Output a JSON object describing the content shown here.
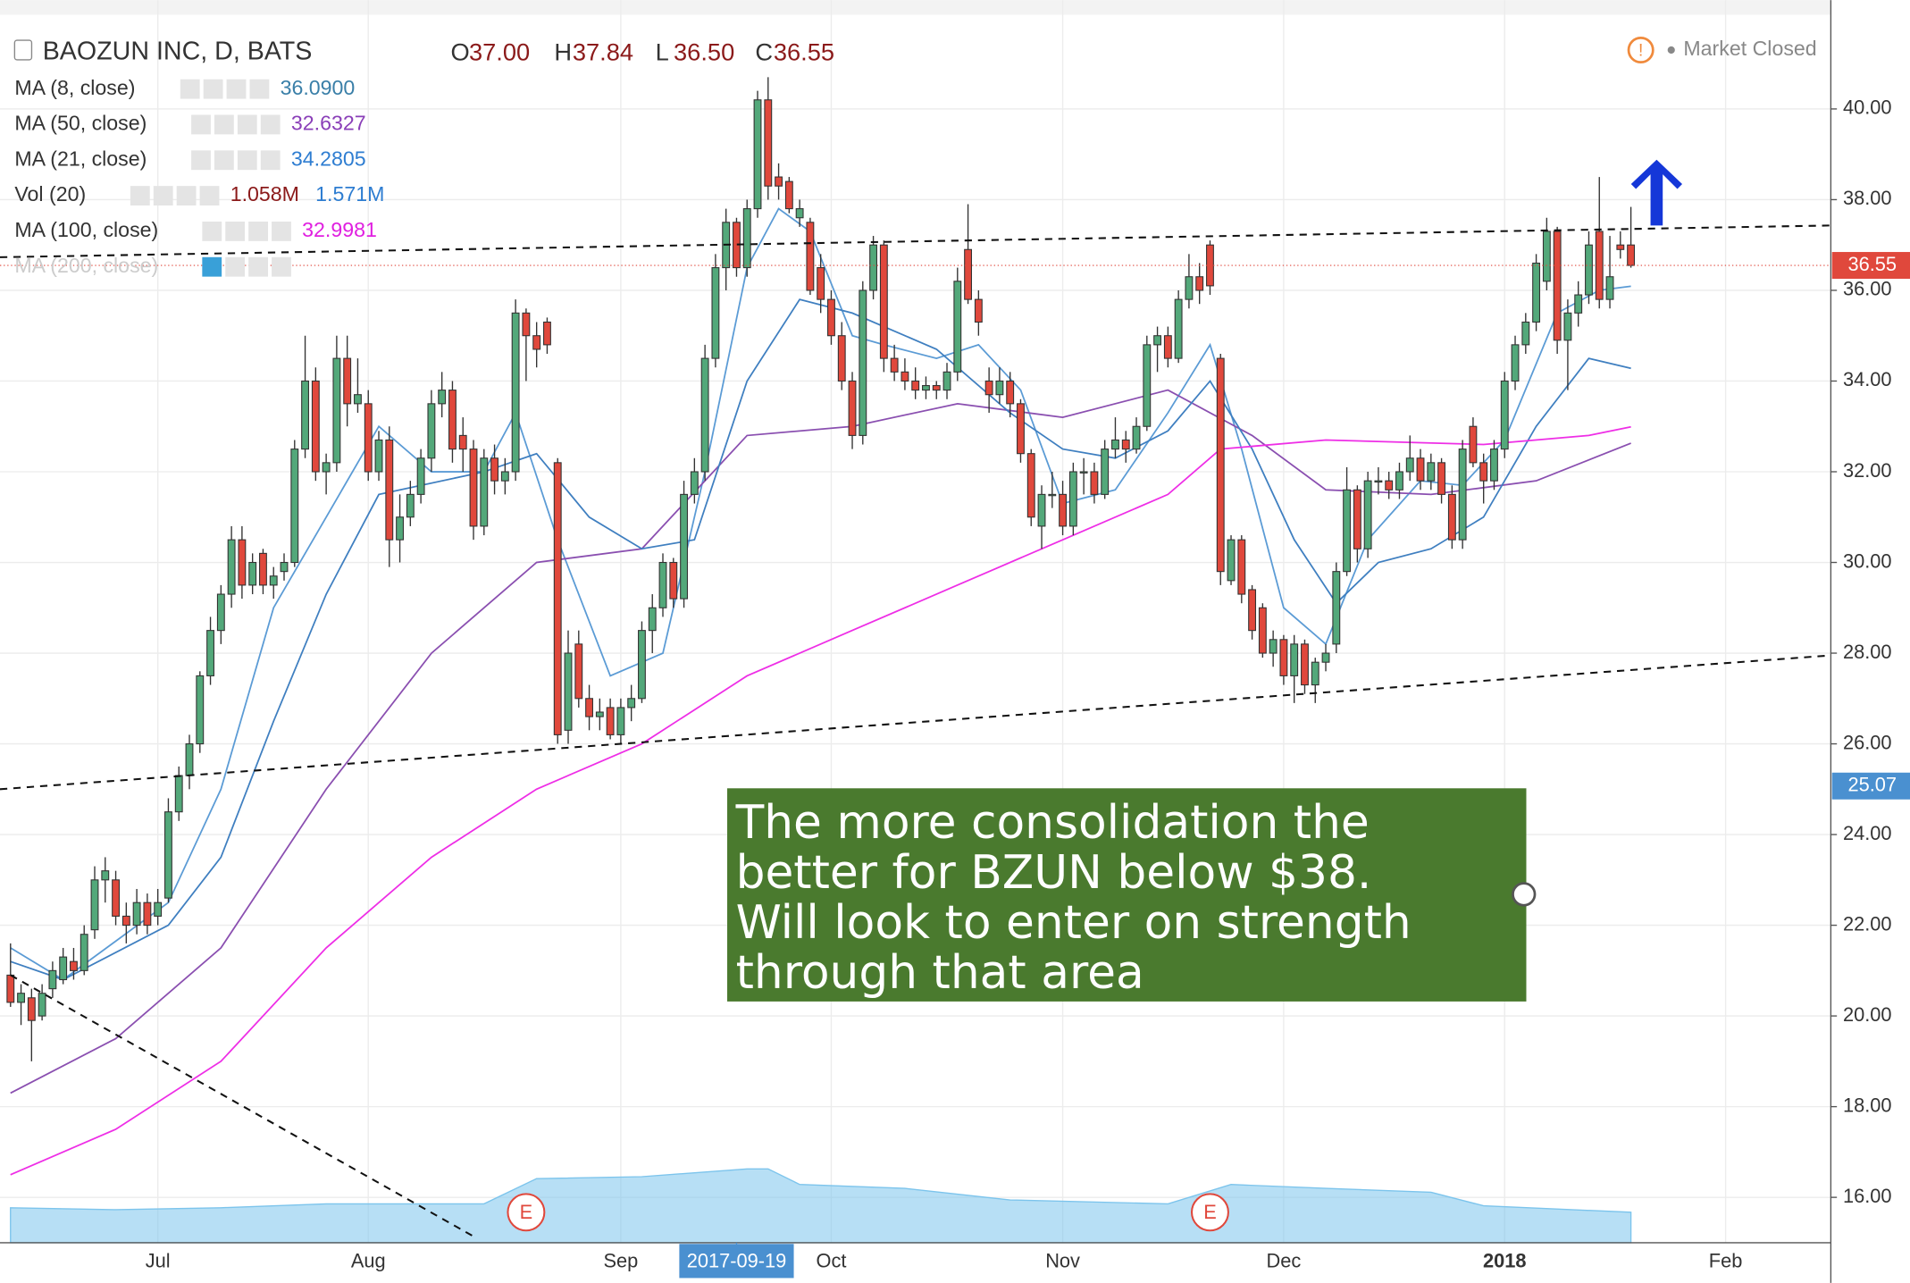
{
  "chart_data": {
    "type": "candlestick",
    "title": "BAOZUN INC, D, BATS",
    "ohlc_legend": [
      {
        "key": "O",
        "text": "37.00"
      },
      {
        "key": "H",
        "text": "37.84"
      },
      {
        "key": "L",
        "text": "36.50"
      },
      {
        "key": "C",
        "text": "36.55"
      }
    ],
    "status": "Market Closed",
    "up_color": "#53a87a",
    "down_color": "#e0483c",
    "xlim": [
      -1,
      173
    ],
    "ylim": [
      15,
      42.4
    ],
    "yticks": [
      {
        "value": 16,
        "label": "16.00"
      },
      {
        "value": 18,
        "label": "18.00"
      },
      {
        "value": 20,
        "label": "20.00"
      },
      {
        "value": 22,
        "label": "22.00"
      },
      {
        "value": 24,
        "label": "24.00"
      },
      {
        "value": 26,
        "label": "26.00"
      },
      {
        "value": 28,
        "label": "28.00"
      },
      {
        "value": 30,
        "label": "30.00"
      },
      {
        "value": 32,
        "label": "32.00"
      },
      {
        "value": 34,
        "label": "34.00"
      },
      {
        "value": 36,
        "label": "36.00"
      },
      {
        "value": 38,
        "label": "38.00"
      },
      {
        "value": 40,
        "label": "40.00"
      }
    ],
    "xticks": [
      {
        "value": 14,
        "label": "Jul"
      },
      {
        "value": 34,
        "label": "Aug"
      },
      {
        "value": 58,
        "label": "Sep"
      },
      {
        "value": 78,
        "label": "Oct"
      },
      {
        "value": 100,
        "label": "Nov"
      },
      {
        "value": 121,
        "label": "Dec"
      },
      {
        "value": 142,
        "label": "2018"
      },
      {
        "value": 163,
        "label": "Feb"
      }
    ],
    "crosshair_label": {
      "value": 69,
      "label": "2017-09-19"
    },
    "grid": true,
    "ohlc": [
      [
        20.9,
        21.6,
        20.2,
        20.3
      ],
      [
        20.3,
        20.7,
        19.8,
        20.5
      ],
      [
        20.4,
        20.6,
        19.0,
        19.9
      ],
      [
        20.0,
        20.7,
        19.9,
        20.5
      ],
      [
        20.6,
        21.2,
        20.4,
        21.0
      ],
      [
        20.8,
        21.5,
        20.7,
        21.3
      ],
      [
        21.2,
        21.5,
        20.8,
        21.0
      ],
      [
        21.0,
        22.0,
        20.9,
        21.8
      ],
      [
        21.9,
        23.3,
        21.7,
        23.0
      ],
      [
        23.0,
        23.5,
        22.5,
        23.2
      ],
      [
        23.0,
        23.2,
        22.0,
        22.2
      ],
      [
        22.2,
        22.5,
        21.6,
        22.0
      ],
      [
        22.0,
        22.8,
        21.8,
        22.5
      ],
      [
        22.5,
        22.7,
        21.8,
        22.0
      ],
      [
        22.2,
        22.8,
        22.0,
        22.5
      ],
      [
        22.6,
        24.8,
        22.5,
        24.5
      ],
      [
        24.5,
        25.5,
        24.3,
        25.3
      ],
      [
        25.3,
        26.2,
        25.0,
        26.0
      ],
      [
        26.0,
        27.6,
        25.8,
        27.5
      ],
      [
        27.5,
        28.8,
        27.3,
        28.5
      ],
      [
        28.5,
        29.5,
        28.2,
        29.3
      ],
      [
        29.3,
        30.8,
        29.0,
        30.5
      ],
      [
        30.5,
        30.8,
        29.2,
        29.5
      ],
      [
        29.5,
        30.2,
        29.3,
        30.0
      ],
      [
        30.2,
        30.3,
        29.3,
        29.5
      ],
      [
        29.5,
        29.9,
        29.2,
        29.7
      ],
      [
        29.8,
        30.2,
        29.6,
        30.0
      ],
      [
        30.0,
        32.7,
        29.9,
        32.5
      ],
      [
        32.5,
        35.0,
        32.3,
        34.0
      ],
      [
        34.0,
        34.3,
        31.8,
        32.0
      ],
      [
        32.0,
        32.4,
        31.5,
        32.2
      ],
      [
        32.2,
        35.0,
        32.0,
        34.5
      ],
      [
        34.5,
        35.0,
        33.0,
        33.5
      ],
      [
        33.5,
        34.5,
        33.3,
        33.7
      ],
      [
        33.5,
        33.8,
        31.8,
        32.0
      ],
      [
        32.0,
        32.9,
        31.8,
        32.7
      ],
      [
        32.7,
        33.0,
        29.9,
        30.5
      ],
      [
        30.5,
        31.5,
        30.0,
        31.0
      ],
      [
        31.0,
        31.8,
        30.8,
        31.5
      ],
      [
        31.5,
        32.5,
        31.3,
        32.3
      ],
      [
        32.3,
        33.8,
        32.0,
        33.5
      ],
      [
        33.5,
        34.2,
        33.2,
        33.8
      ],
      [
        33.8,
        34.0,
        32.2,
        32.5
      ],
      [
        32.8,
        33.2,
        32.0,
        32.5
      ],
      [
        32.5,
        32.7,
        30.5,
        30.8
      ],
      [
        30.8,
        32.5,
        30.6,
        32.3
      ],
      [
        32.3,
        32.6,
        31.5,
        31.8
      ],
      [
        31.8,
        32.3,
        31.5,
        32.0
      ],
      [
        32.0,
        35.8,
        31.8,
        35.5
      ],
      [
        35.5,
        35.6,
        34.0,
        35.0
      ],
      [
        35.0,
        35.3,
        34.3,
        34.7
      ],
      [
        35.3,
        35.4,
        34.6,
        34.8
      ],
      [
        32.2,
        32.3,
        26.0,
        26.2
      ],
      [
        26.3,
        28.5,
        26.0,
        28.0
      ],
      [
        28.2,
        28.5,
        26.8,
        27.0
      ],
      [
        27.0,
        27.3,
        26.3,
        26.6
      ],
      [
        26.6,
        27.0,
        26.3,
        26.7
      ],
      [
        26.8,
        27.0,
        26.1,
        26.2
      ],
      [
        26.2,
        27.0,
        26.0,
        26.8
      ],
      [
        26.8,
        27.3,
        26.5,
        27.0
      ],
      [
        27.0,
        28.7,
        26.9,
        28.5
      ],
      [
        28.5,
        29.3,
        28.0,
        29.0
      ],
      [
        29.0,
        30.2,
        28.8,
        30.0
      ],
      [
        30.0,
        30.1,
        29.0,
        29.2
      ],
      [
        29.2,
        31.8,
        29.0,
        31.5
      ],
      [
        31.5,
        32.3,
        31.3,
        32.0
      ],
      [
        32.0,
        34.8,
        31.8,
        34.5
      ],
      [
        34.5,
        36.8,
        34.3,
        36.5
      ],
      [
        36.5,
        37.8,
        36.0,
        37.5
      ],
      [
        37.5,
        37.6,
        36.3,
        36.5
      ],
      [
        36.5,
        38.0,
        36.3,
        37.8
      ],
      [
        37.8,
        40.4,
        37.6,
        40.2
      ],
      [
        40.2,
        40.7,
        38.0,
        38.3
      ],
      [
        38.5,
        38.8,
        38.0,
        38.3
      ],
      [
        38.4,
        38.5,
        37.7,
        37.8
      ],
      [
        37.6,
        38.0,
        37.4,
        37.8
      ],
      [
        37.5,
        37.6,
        35.9,
        36.0
      ],
      [
        36.5,
        36.8,
        35.5,
        35.8
      ],
      [
        35.8,
        36.0,
        34.8,
        35.0
      ],
      [
        35.0,
        35.3,
        33.8,
        34.0
      ],
      [
        34.0,
        34.2,
        32.5,
        32.8
      ],
      [
        32.8,
        36.2,
        32.6,
        36.0
      ],
      [
        36.0,
        37.2,
        35.8,
        37.0
      ],
      [
        37.0,
        37.1,
        34.2,
        34.5
      ],
      [
        34.5,
        34.8,
        34.0,
        34.2
      ],
      [
        34.2,
        34.5,
        33.8,
        34.0
      ],
      [
        34.0,
        34.3,
        33.6,
        33.8
      ],
      [
        33.8,
        34.1,
        33.6,
        33.9
      ],
      [
        33.9,
        34.0,
        33.6,
        33.8
      ],
      [
        33.8,
        34.4,
        33.6,
        34.2
      ],
      [
        34.2,
        36.5,
        34.0,
        36.2
      ],
      [
        36.9,
        37.9,
        35.7,
        35.8
      ],
      [
        35.8,
        36.0,
        35.0,
        35.3
      ],
      [
        34.0,
        34.3,
        33.3,
        33.7
      ],
      [
        33.7,
        34.3,
        33.5,
        34.0
      ],
      [
        34.0,
        34.2,
        33.2,
        33.5
      ],
      [
        33.5,
        33.6,
        32.2,
        32.4
      ],
      [
        32.4,
        32.5,
        30.8,
        31.0
      ],
      [
        30.8,
        31.7,
        30.3,
        31.5
      ],
      [
        31.5,
        32.0,
        31.2,
        31.5
      ],
      [
        31.5,
        31.8,
        30.6,
        30.8
      ],
      [
        30.8,
        32.2,
        30.6,
        32.0
      ],
      [
        32.0,
        32.3,
        31.5,
        32.0
      ],
      [
        32.0,
        32.2,
        31.3,
        31.5
      ],
      [
        31.5,
        32.7,
        31.4,
        32.5
      ],
      [
        32.5,
        33.2,
        32.3,
        32.7
      ],
      [
        32.7,
        32.9,
        32.2,
        32.5
      ],
      [
        32.5,
        33.2,
        32.4,
        33.0
      ],
      [
        33.0,
        35.0,
        32.9,
        34.8
      ],
      [
        34.8,
        35.2,
        34.2,
        35.0
      ],
      [
        35.0,
        35.2,
        34.3,
        34.5
      ],
      [
        34.5,
        36.0,
        34.4,
        35.8
      ],
      [
        35.8,
        36.8,
        35.6,
        36.3
      ],
      [
        36.3,
        36.6,
        35.7,
        36.0
      ],
      [
        37.0,
        37.1,
        35.9,
        36.1
      ],
      [
        34.5,
        34.6,
        29.5,
        29.8
      ],
      [
        29.6,
        30.6,
        29.5,
        30.5
      ],
      [
        30.5,
        30.6,
        29.1,
        29.3
      ],
      [
        29.4,
        29.5,
        28.3,
        28.5
      ],
      [
        29.0,
        29.1,
        27.9,
        28.0
      ],
      [
        28.0,
        28.5,
        27.7,
        28.3
      ],
      [
        28.3,
        28.4,
        27.3,
        27.5
      ],
      [
        27.5,
        28.4,
        26.9,
        28.2
      ],
      [
        28.2,
        28.3,
        27.1,
        27.3
      ],
      [
        27.3,
        27.9,
        26.9,
        27.8
      ],
      [
        27.8,
        28.2,
        27.6,
        28.0
      ],
      [
        28.2,
        30.0,
        28.0,
        29.8
      ],
      [
        29.8,
        32.1,
        29.7,
        31.6
      ],
      [
        31.6,
        31.7,
        30.0,
        30.3
      ],
      [
        30.3,
        32.0,
        30.1,
        31.8
      ],
      [
        31.8,
        32.1,
        31.5,
        31.8
      ],
      [
        31.8,
        32.0,
        31.4,
        31.6
      ],
      [
        31.6,
        32.2,
        31.4,
        32.0
      ],
      [
        32.0,
        32.8,
        31.8,
        32.3
      ],
      [
        32.3,
        32.5,
        31.6,
        31.8
      ],
      [
        31.8,
        32.4,
        31.6,
        32.2
      ],
      [
        32.2,
        32.3,
        31.3,
        31.5
      ],
      [
        31.5,
        31.7,
        30.3,
        30.5
      ],
      [
        30.5,
        32.7,
        30.3,
        32.5
      ],
      [
        33.0,
        33.2,
        32.1,
        32.2
      ],
      [
        32.2,
        32.4,
        31.3,
        31.8
      ],
      [
        31.8,
        32.7,
        31.6,
        32.5
      ],
      [
        32.5,
        34.2,
        32.3,
        34.0
      ],
      [
        34.0,
        35.0,
        33.8,
        34.8
      ],
      [
        34.8,
        35.5,
        34.6,
        35.3
      ],
      [
        35.3,
        36.8,
        35.1,
        36.6
      ],
      [
        36.2,
        37.6,
        36.0,
        37.3
      ],
      [
        37.3,
        37.4,
        34.6,
        34.9
      ],
      [
        34.9,
        35.8,
        33.8,
        35.5
      ],
      [
        35.5,
        36.2,
        35.2,
        35.9
      ],
      [
        35.9,
        37.3,
        35.7,
        37.0
      ],
      [
        37.3,
        38.5,
        35.6,
        35.8
      ],
      [
        35.8,
        37.2,
        35.6,
        36.3
      ],
      [
        37.0,
        37.3,
        36.7,
        36.9
      ],
      [
        37.0,
        37.84,
        36.5,
        36.55
      ]
    ],
    "studies": [
      {
        "label": "MA (8, close)",
        "readout": [
          "36.0900"
        ],
        "readout_colors": [
          "#3a7fa8"
        ],
        "color": "#5b9bd5",
        "x": [
          0,
          5,
          15,
          20,
          25,
          30,
          35,
          40,
          45,
          48,
          52,
          57,
          62,
          66,
          70,
          73,
          76,
          80,
          83,
          88,
          92,
          96,
          100,
          105,
          110,
          114,
          117,
          121,
          125,
          129,
          134,
          138,
          142,
          147,
          151,
          154
        ],
        "values": [
          21.5,
          20.8,
          22.5,
          25,
          29,
          31,
          33,
          32,
          32,
          33.3,
          30.5,
          27.5,
          28,
          32,
          36.5,
          37.8,
          37.3,
          35,
          34.8,
          34.5,
          34.8,
          33.8,
          31.3,
          31.6,
          33.3,
          34.8,
          32.5,
          29,
          28.2,
          30.5,
          31.8,
          31.7,
          32.7,
          35.5,
          36,
          36.09
        ]
      },
      {
        "label": "MA (50, close)",
        "readout": [
          "32.6327"
        ],
        "readout_colors": [
          "#8a3fb8"
        ],
        "color": "#8a4fb0",
        "x": [
          0,
          10,
          20,
          30,
          40,
          50,
          60,
          70,
          80,
          90,
          100,
          110,
          118,
          125,
          135,
          145,
          154
        ],
        "values": [
          18.3,
          19.5,
          21.5,
          25,
          28,
          30,
          30.3,
          32.8,
          33,
          33.5,
          33.2,
          33.8,
          32.8,
          31.6,
          31.5,
          31.8,
          32.63
        ]
      },
      {
        "label": "MA (21, close)",
        "readout": [
          "34.2805"
        ],
        "readout_colors": [
          "#2e7dd1"
        ],
        "color": "#3f7fc0",
        "x": [
          0,
          5,
          15,
          20,
          25,
          30,
          35,
          45,
          50,
          55,
          60,
          65,
          70,
          75,
          80,
          88,
          95,
          100,
          105,
          110,
          114,
          118,
          122,
          126,
          130,
          135,
          140,
          145,
          150,
          154
        ],
        "values": [
          21.2,
          20.8,
          22,
          23.5,
          26.5,
          29.3,
          31.5,
          32,
          32.4,
          31,
          30.3,
          30.5,
          34,
          35.8,
          35.5,
          34.7,
          33.3,
          32.5,
          32.3,
          32.9,
          34,
          32.5,
          30.5,
          29.1,
          30,
          30.3,
          31,
          33,
          34.5,
          34.28
        ]
      },
      {
        "label": "Vol (20)",
        "readout": [
          "1.058M",
          "1.571M"
        ],
        "readout_colors": [
          "#8b1a1a",
          "#2e7dd1"
        ],
        "color": "#7cc4ec",
        "axis": "volume",
        "x": [
          0,
          10,
          20,
          30,
          45,
          50,
          60,
          70,
          72,
          75,
          85,
          95,
          110,
          116,
          125,
          135,
          140,
          154
        ],
        "values": [
          1.8,
          1.7,
          1.8,
          2.0,
          2.0,
          3.3,
          3.4,
          3.8,
          3.8,
          3.0,
          2.8,
          2.2,
          2.0,
          3.0,
          2.8,
          2.6,
          1.9,
          1.571
        ]
      },
      {
        "label": "MA (100, close)",
        "readout": [
          "32.9981"
        ],
        "readout_colors": [
          "#e020e0"
        ],
        "color": "#ee2ee6",
        "x": [
          0,
          10,
          20,
          30,
          40,
          50,
          60,
          70,
          80,
          90,
          100,
          110,
          115,
          125,
          140,
          150,
          154
        ],
        "values": [
          16.5,
          17.5,
          19,
          21.5,
          23.5,
          25,
          26,
          27.5,
          28.5,
          29.5,
          30.5,
          31.5,
          32.5,
          32.7,
          32.6,
          32.8,
          32.99
        ]
      },
      {
        "label": "MA (200, close)",
        "readout": [],
        "readout_colors": [],
        "color": "#dddddd",
        "x": [],
        "values": []
      }
    ],
    "vlim": [
      0,
      64
    ],
    "trendlines": [
      {
        "x": [
          -1,
          173
        ],
        "values": [
          36.73,
          37.43
        ]
      },
      {
        "x": [
          -1,
          173
        ],
        "values": [
          25.0,
          27.95
        ]
      },
      {
        "x": [
          0,
          44
        ],
        "values": [
          20.9,
          15.14
        ]
      }
    ],
    "price_labels": [
      {
        "price": 36.55,
        "color": "#e0483c"
      },
      {
        "price": 25.07,
        "color": "#4a90d0"
      }
    ],
    "events": [
      {
        "x": 49,
        "label": "E"
      },
      {
        "x": 114,
        "label": "E"
      }
    ],
    "annotation": [
      "The more consolidation the",
      "better for BZUN below $38.",
      "Will look to enter on strength",
      "through that area"
    ]
  }
}
